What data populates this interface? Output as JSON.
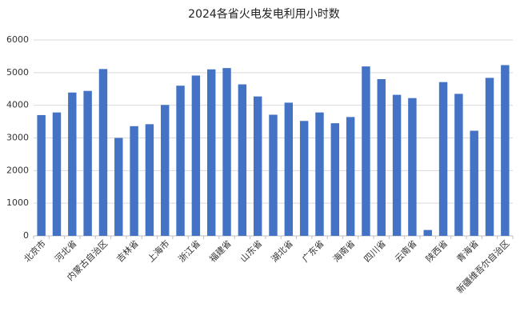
{
  "chart_data": {
    "type": "bar",
    "title": "2024各省火电发电利用小时数",
    "categories": [
      "北京市",
      null,
      "河北省",
      null,
      "内蒙古自治区",
      null,
      "吉林省",
      null,
      "上海市",
      null,
      "浙江省",
      null,
      "福建省",
      null,
      "山东省",
      null,
      "湖北省",
      null,
      "广东省",
      null,
      "海南省",
      null,
      "四川省",
      null,
      "云南省",
      null,
      "陕西省",
      null,
      "青海省",
      null,
      "新疆维吾尔自治区"
    ],
    "values": [
      3700,
      3780,
      4390,
      4440,
      5110,
      3000,
      3360,
      3420,
      4010,
      4600,
      4910,
      5100,
      5140,
      4640,
      4270,
      3710,
      4080,
      3520,
      3780,
      3450,
      3640,
      5190,
      4800,
      4320,
      4220,
      180,
      4710,
      4350,
      3220,
      4840,
      5230
    ],
    "color": "#4472c4",
    "ylim": [
      0,
      6000
    ],
    "yticks": [
      0,
      1000,
      2000,
      3000,
      4000,
      5000,
      6000
    ],
    "grid": true
  }
}
